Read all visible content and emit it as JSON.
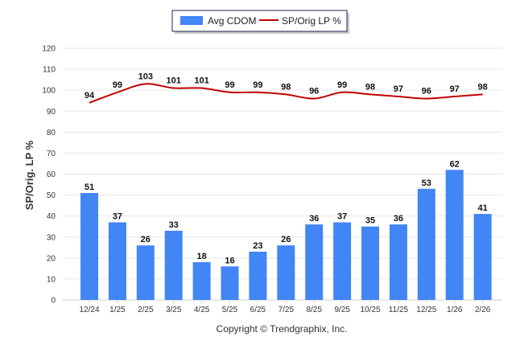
{
  "chart_data": {
    "type": "bar",
    "title": "",
    "xlabel": "",
    "ylabel": "SP/Orig. LP %",
    "ylim": [
      0,
      120
    ],
    "yticks": [
      0,
      10,
      20,
      30,
      40,
      50,
      60,
      70,
      80,
      90,
      100,
      110,
      120
    ],
    "grid": true,
    "legend_position": "top-center",
    "categories": [
      "12/24",
      "1/25",
      "2/25",
      "3/25",
      "4/25",
      "5/25",
      "6/25",
      "7/25",
      "8/25",
      "9/25",
      "10/25",
      "11/25",
      "12/25",
      "1/26",
      "2/26"
    ],
    "series": [
      {
        "name": "Avg CDOM",
        "type": "bar",
        "color": "#4285f4",
        "values": [
          51,
          37,
          26,
          33,
          18,
          16,
          23,
          26,
          36,
          37,
          35,
          36,
          53,
          62,
          41
        ]
      },
      {
        "name": "SP/Orig LP %",
        "type": "line",
        "color": "#c00000",
        "values": [
          94,
          99,
          103,
          101,
          101,
          99,
          99,
          98,
          96,
          99,
          98,
          97,
          96,
          97,
          98
        ]
      }
    ]
  },
  "footer": {
    "copyright": "Copyright © Trendgraphix, Inc."
  }
}
